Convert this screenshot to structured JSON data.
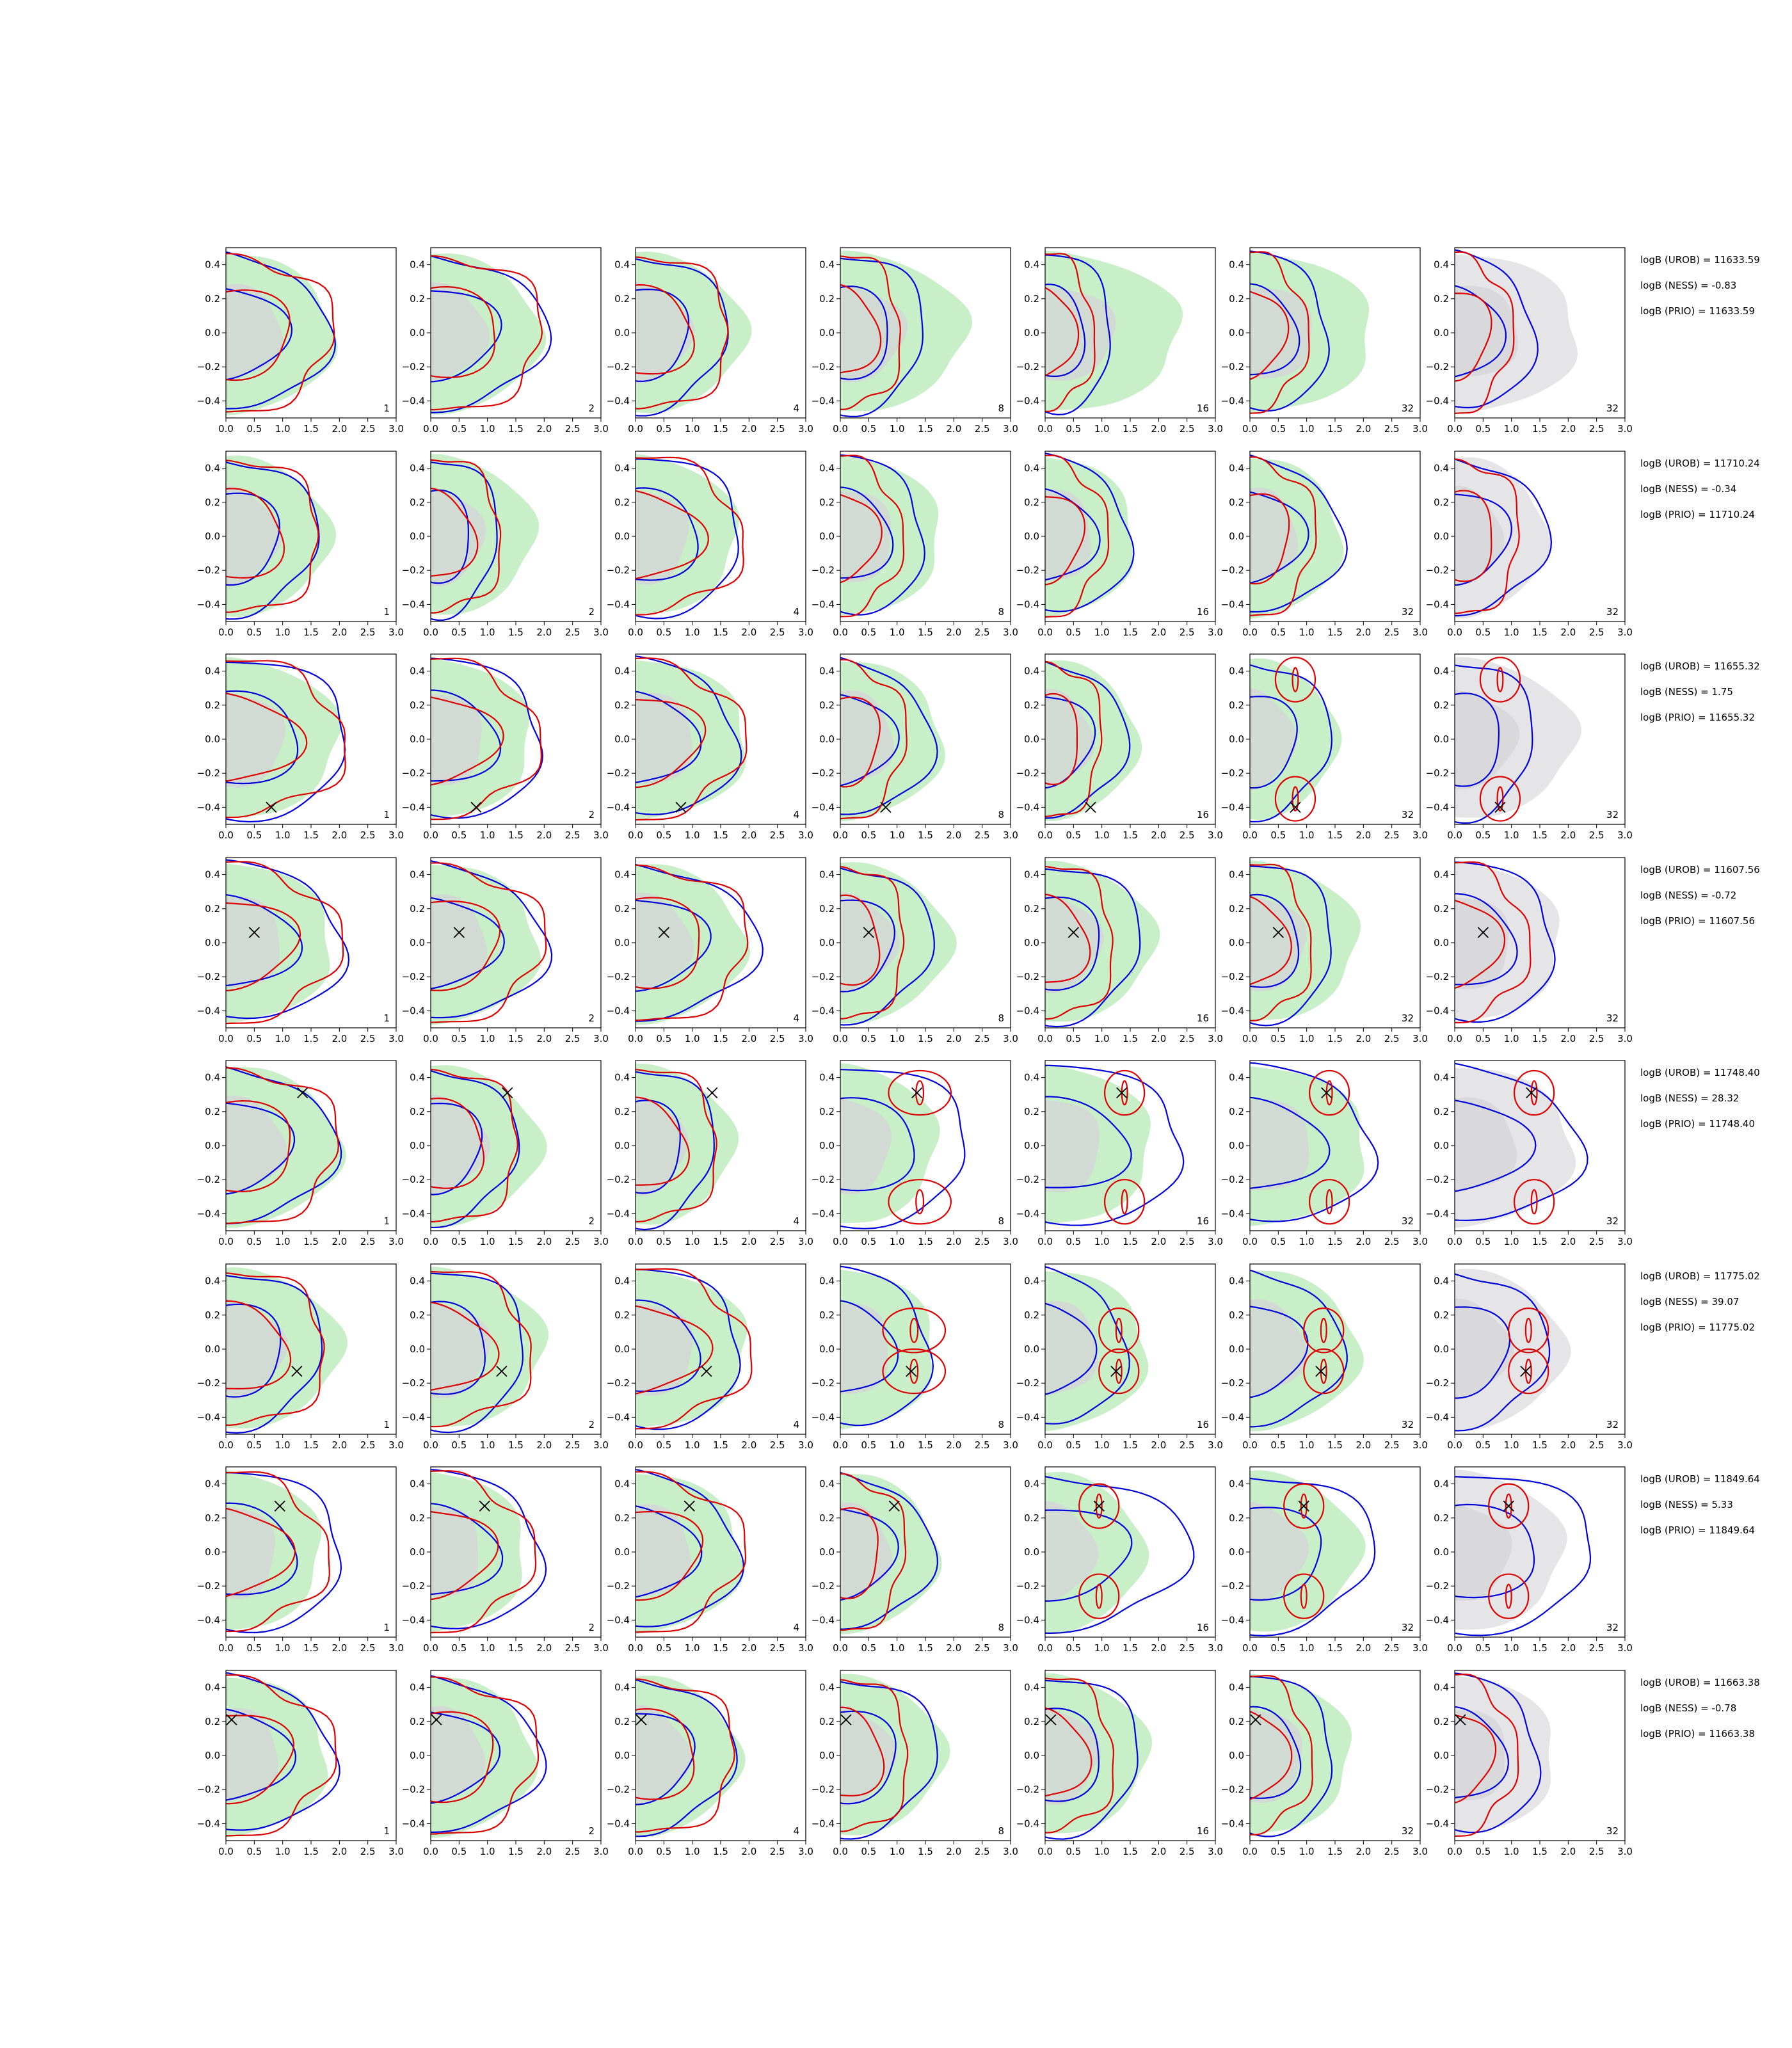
{
  "chart_data": {
    "type": "contour",
    "title": "",
    "xlabel": "",
    "ylabel": "",
    "xlim": [
      0,
      3
    ],
    "ylim": [
      -0.5,
      0.5
    ],
    "xticks": [
      "0.0",
      "0.5",
      "1.0",
      "1.5",
      "2.0",
      "2.5",
      "3.0"
    ],
    "yticks": [
      "0.4",
      "0.2",
      "0.0",
      "−0.2",
      "−0.4"
    ],
    "grid": false,
    "legend": "none",
    "colors": {
      "filled_a": "#c8efc8",
      "filled_b": "#e5e5e8",
      "inner_fill": "#d4d4d8",
      "line_a": "#0000dd",
      "line_b": "#dd0000",
      "marker": "#000000"
    },
    "panel_labels": [
      "1",
      "2",
      "4",
      "8",
      "16",
      "32",
      "32"
    ],
    "rows": [
      {
        "marker": null,
        "stats": [
          "logB (UROB) = 11633.59",
          "logB (NESS) = -0.83",
          "logB (PRIO) = 11633.59"
        ]
      },
      {
        "marker": null,
        "stats": [
          "logB (UROB) = 11710.24",
          "logB (NESS) = -0.34",
          "logB (PRIO) = 11710.24"
        ]
      },
      {
        "marker": [
          0.8,
          -0.4
        ],
        "stats": [
          "logB (UROB) = 11655.32",
          "logB (NESS) = 1.75",
          "logB (PRIO) = 11655.32"
        ]
      },
      {
        "marker": [
          0.5,
          0.06
        ],
        "stats": [
          "logB (UROB) = 11607.56",
          "logB (NESS) = -0.72",
          "logB (PRIO) = 11607.56"
        ]
      },
      {
        "marker": [
          1.35,
          0.31
        ],
        "stats": [
          "logB (UROB) = 11748.40",
          "logB (NESS) = 28.32",
          "logB (PRIO) = 11748.40"
        ]
      },
      {
        "marker": [
          1.25,
          -0.13
        ],
        "stats": [
          "logB (UROB) = 11775.02",
          "logB (NESS) = 39.07",
          "logB (PRIO) = 11775.02"
        ]
      },
      {
        "marker": [
          0.95,
          0.27
        ],
        "stats": [
          "logB (UROB) = 11849.64",
          "logB (NESS) = 5.33",
          "logB (PRIO) = 11849.64"
        ]
      },
      {
        "marker": [
          0.1,
          0.21
        ],
        "stats": [
          "logB (UROB) = 11663.38",
          "logB (NESS) = -0.78",
          "logB (PRIO) = 11663.38"
        ]
      }
    ],
    "contours": {
      "outer_fill_extent": [
        [
          1.9,
          1.9,
          1.9,
          2.2,
          2.4,
          2.2,
          2.2
        ],
        [
          1.8,
          1.8,
          1.8,
          1.8,
          1.6,
          1.6,
          1.6
        ],
        [
          2.0,
          1.8,
          2.0,
          1.8,
          1.6,
          1.5,
          2.1
        ],
        [
          1.9,
          1.9,
          1.9,
          1.9,
          1.9,
          1.9,
          1.9
        ],
        [
          2.0,
          1.9,
          1.7,
          1.7,
          1.9,
          2.1,
          2.1
        ],
        [
          2.0,
          2.0,
          2.0,
          1.7,
          1.8,
          1.9,
          1.9
        ],
        [
          1.7,
          1.7,
          1.9,
          1.7,
          1.7,
          1.9,
          1.9
        ],
        [
          1.8,
          1.8,
          1.8,
          1.8,
          1.8,
          1.8,
          1.8
        ]
      ],
      "blue_outer_extent": [
        [
          1.8,
          2.0,
          1.6,
          1.5,
          1.2,
          1.4,
          1.4
        ],
        [
          1.6,
          1.2,
          1.9,
          1.5,
          1.5,
          1.6,
          1.6
        ],
        [
          2.2,
          2.0,
          1.8,
          1.6,
          1.4,
          1.4,
          1.4
        ],
        [
          2.1,
          2.0,
          2.1,
          1.6,
          1.7,
          1.5,
          1.8
        ],
        [
          1.9,
          1.5,
          1.4,
          2.3,
          2.5,
          2.2,
          2.2
        ],
        [
          1.7,
          1.7,
          1.9,
          1.6,
          1.4,
          1.6,
          1.6
        ],
        [
          2.1,
          2.0,
          1.8,
          1.6,
          2.5,
          2.2,
          2.5
        ],
        [
          1.9,
          1.9,
          1.7,
          1.7,
          1.7,
          1.5,
          1.5
        ]
      ]
    }
  }
}
